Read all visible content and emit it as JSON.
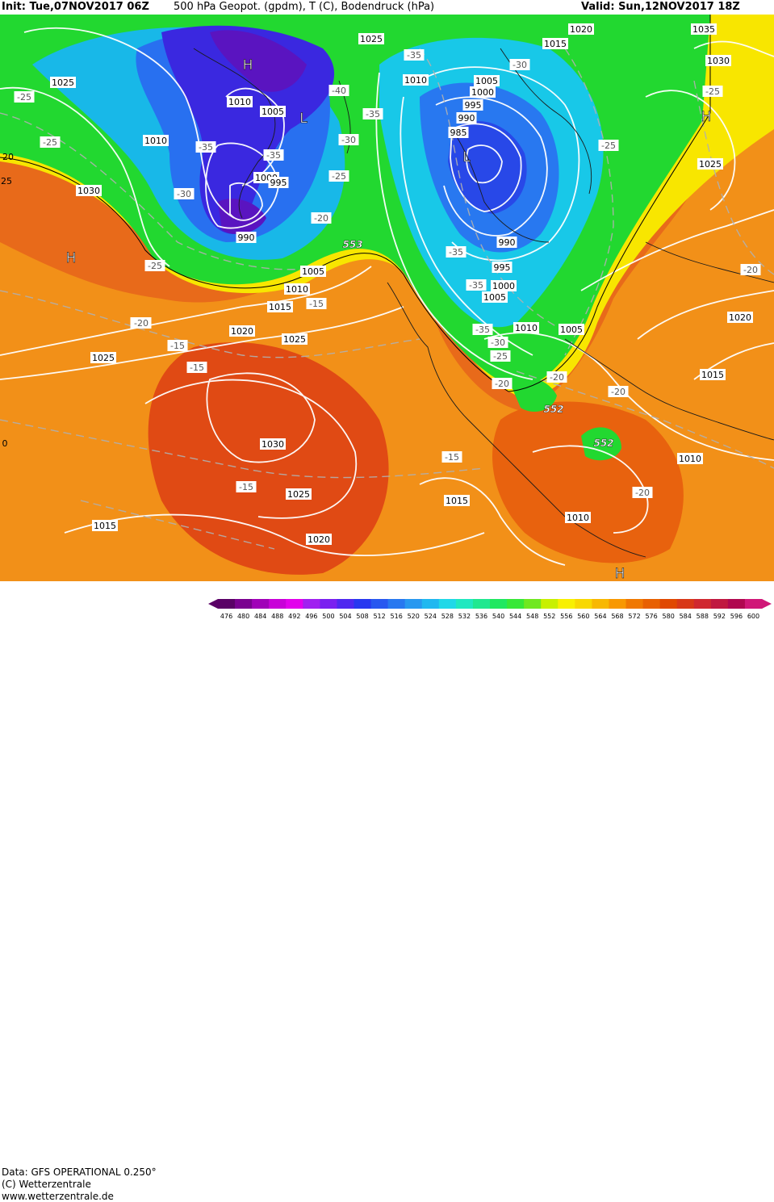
{
  "header": {
    "init": "Init: Tue,07NOV2017 06Z",
    "parameters": "500 hPa Geopot. (gpdm), T (C), Bodendruck (hPa)",
    "valid": "Valid: Sun,12NOV2017 18Z"
  },
  "footer": {
    "data_source": "Data: GFS OPERATIONAL 0.250°",
    "copyright": "(C) Wetterzentrale",
    "website": "www.wetterzentrale.de"
  },
  "legend": {
    "values": [
      "476",
      "480",
      "484",
      "488",
      "492",
      "496",
      "500",
      "504",
      "508",
      "512",
      "516",
      "520",
      "524",
      "528",
      "532",
      "536",
      "540",
      "544",
      "548",
      "552",
      "556",
      "560",
      "564",
      "568",
      "572",
      "576",
      "580",
      "584",
      "588",
      "592",
      "596",
      "600"
    ],
    "colors": [
      "#5a0066",
      "#7a0090",
      "#a000b8",
      "#c800d8",
      "#e200ec",
      "#a020f0",
      "#7a20f0",
      "#5028f0",
      "#2838f0",
      "#2858f0",
      "#2878f0",
      "#2898f0",
      "#20b8f0",
      "#20d8e8",
      "#20e8c0",
      "#20e890",
      "#20e860",
      "#38e838",
      "#70e820",
      "#c8f000",
      "#f8f000",
      "#f8d800",
      "#f8b800",
      "#f89800",
      "#f07800",
      "#e86000",
      "#e04800",
      "#d83818",
      "#d02830",
      "#c01840",
      "#b00850",
      "#d01878"
    ]
  },
  "colors": {
    "green": "#20d830",
    "blue_deep": "#3020e0",
    "purple": "#5014c0",
    "orange": "#f08018",
    "red_orange": "#e04a14",
    "yellow": "#f8e800"
  },
  "map": {
    "pressure_centers": [
      "H",
      "H",
      "L",
      "L",
      "H",
      "H"
    ],
    "isobars": [
      "1025",
      "1025",
      "1020",
      "1015",
      "1035",
      "1030",
      "1010",
      "1005",
      "1000",
      "995",
      "990",
      "985",
      "990",
      "995",
      "1000",
      "1005",
      "1010",
      "1010",
      "1005",
      "1000",
      "995",
      "990",
      "1030",
      "1010",
      "1005",
      "1010",
      "1015",
      "1020",
      "1025",
      "1025",
      "1030",
      "1025",
      "1020",
      "1015",
      "1015",
      "1010",
      "1015",
      "1020",
      "1020",
      "1015",
      "1005",
      "1025",
      "1010"
    ],
    "temperatures": [
      "-35",
      "-30",
      "-25",
      "-20",
      "-25",
      "-25",
      "-35",
      "-40",
      "-35",
      "-35",
      "-30",
      "-30",
      "-25",
      "-20",
      "-25",
      "-20",
      "-15",
      "-20",
      "-15",
      "-15",
      "-15",
      "-15",
      "-20",
      "-20",
      "-25",
      "-35",
      "-35",
      "-35",
      "-30",
      "-25",
      "-20",
      "-20",
      "-15",
      "-15",
      "-20",
      "-25",
      "-20",
      "-35",
      "-35",
      "-30"
    ],
    "gpdm_labels": [
      "553",
      "552",
      "552"
    ],
    "edge_labels": [
      "20",
      "25",
      "0"
    ]
  }
}
